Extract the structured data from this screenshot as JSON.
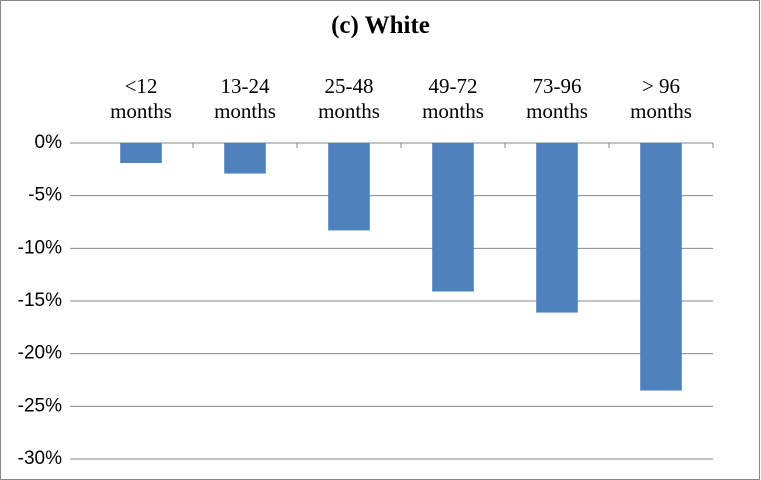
{
  "chart_data": {
    "type": "bar",
    "title": "(c) White",
    "categories": [
      "<12 months",
      "13-24 months",
      "25-48 months",
      "49-72 months",
      "73-96 months",
      "> 96 months"
    ],
    "values": [
      -1.9,
      -2.9,
      -8.3,
      -14.1,
      -16.1,
      -23.5
    ],
    "color": "#4f81bd",
    "ylim": [
      -30,
      0
    ],
    "yticks": [
      {
        "value": 0,
        "label": "0%"
      },
      {
        "value": -5,
        "label": "-5%"
      },
      {
        "value": -10,
        "label": "-10%"
      },
      {
        "value": -15,
        "label": "-15%"
      },
      {
        "value": -20,
        "label": "-20%"
      },
      {
        "value": -25,
        "label": "-25%"
      },
      {
        "value": -30,
        "label": "-30%"
      }
    ],
    "grid": true
  }
}
